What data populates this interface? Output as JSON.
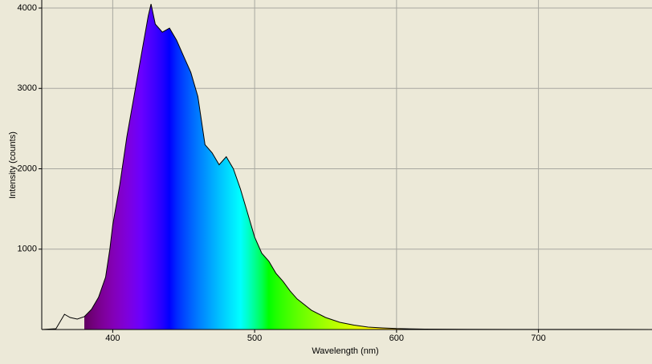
{
  "chart_data": {
    "type": "area",
    "xlabel": "Wavelength (nm)",
    "ylabel": "Intensity (counts)",
    "x": [
      350,
      360,
      366,
      370,
      375,
      380,
      385,
      390,
      395,
      398,
      400,
      405,
      410,
      415,
      420,
      425,
      427,
      430,
      435,
      440,
      445,
      450,
      455,
      460,
      465,
      470,
      475,
      480,
      485,
      490,
      495,
      500,
      505,
      510,
      515,
      520,
      525,
      530,
      540,
      550,
      560,
      570,
      580,
      590,
      600,
      620,
      650,
      700,
      750,
      780
    ],
    "values": [
      0,
      10,
      190,
      150,
      130,
      160,
      250,
      400,
      650,
      1000,
      1300,
      1800,
      2400,
      2900,
      3400,
      3900,
      4050,
      3800,
      3700,
      3750,
      3600,
      3400,
      3200,
      2900,
      2300,
      2200,
      2050,
      2150,
      2000,
      1750,
      1450,
      1150,
      950,
      850,
      700,
      600,
      480,
      380,
      240,
      150,
      90,
      55,
      30,
      20,
      12,
      5,
      2,
      1,
      1,
      0
    ],
    "color": "#000000",
    "xlim": [
      350,
      780
    ],
    "ylim": [
      0,
      4100
    ],
    "xticks": [
      400,
      500,
      600,
      700
    ],
    "yticks": [
      1000,
      2000,
      3000,
      4000
    ],
    "grid": true,
    "spectrum_fill": true
  }
}
